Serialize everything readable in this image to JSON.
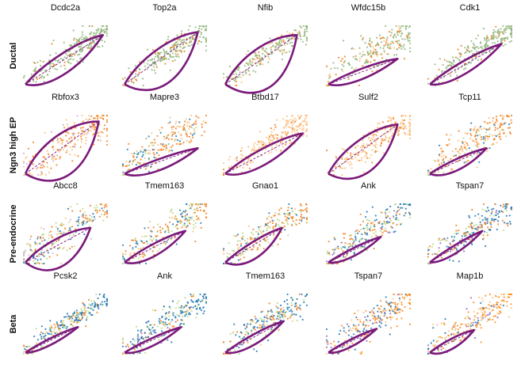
{
  "chart_data": {
    "type": "scatter",
    "description_of_marks": {
      "points": "cells, coloured by cluster",
      "loop": "fitted phase portrait (purple solid curve)",
      "diagonal": "steady-state ratio (purple dashed line)"
    },
    "colors": {
      "ductal": "#8fb57b",
      "ngn3_low": "#c5b0d5",
      "ngn3_high": "#f0801e",
      "ngn3_high_light": "#fcbf80",
      "pre_endocrine": "#b9d98a",
      "alpha": "#1f77b4",
      "beta": "#ff8c1a",
      "delta": "#9467bd",
      "epsilon": "#d9c5a0",
      "fit_curve": "#7b1a7b"
    },
    "rows": [
      {
        "label": "Ductal",
        "panels": [
          {
            "gene": "Dcdc2a",
            "palette": [
              "ductal",
              "ngn3_high"
            ],
            "weights": [
              0.85,
              0.15
            ],
            "spread": 0.1,
            "loop": {
              "up_bulge": 0.18,
              "down_bulge": 0.1,
              "end_x": 0.95,
              "end_y": 0.85
            }
          },
          {
            "gene": "Top2a",
            "palette": [
              "ductal",
              "ngn3_high"
            ],
            "weights": [
              0.8,
              0.2
            ],
            "spread": 0.1,
            "loop": {
              "up_bulge": 0.35,
              "down_bulge": 0.15,
              "end_x": 0.9,
              "end_y": 0.9
            }
          },
          {
            "gene": "Nfib",
            "palette": [
              "ductal",
              "ngn3_high_light",
              "ngn3_high"
            ],
            "weights": [
              0.7,
              0.2,
              0.1
            ],
            "spread": 0.09,
            "loop": {
              "up_bulge": 0.4,
              "down_bulge": 0.18,
              "end_x": 0.88,
              "end_y": 0.85
            }
          },
          {
            "gene": "Wfdc15b",
            "palette": [
              "ductal",
              "ngn3_high",
              "ngn3_high_light"
            ],
            "weights": [
              0.6,
              0.25,
              0.15
            ],
            "spread": 0.13,
            "loop": {
              "up_bulge": 0.1,
              "down_bulge": 0.05,
              "end_x": 0.85,
              "end_y": 0.45
            }
          },
          {
            "gene": "Cdk1",
            "palette": [
              "ductal",
              "ngn3_high"
            ],
            "weights": [
              0.85,
              0.15
            ],
            "spread": 0.1,
            "loop": {
              "up_bulge": 0.12,
              "down_bulge": 0.06,
              "end_x": 0.88,
              "end_y": 0.7
            }
          }
        ]
      },
      {
        "label": "Ngn3 high EP",
        "panels": [
          {
            "gene": "Rbfox3",
            "palette": [
              "ngn3_high",
              "ngn3_high_light",
              "ngn3_low"
            ],
            "weights": [
              0.55,
              0.35,
              0.1
            ],
            "spread": 0.14,
            "loop": {
              "up_bulge": 0.38,
              "down_bulge": 0.2,
              "end_x": 0.9,
              "end_y": 0.9
            }
          },
          {
            "gene": "Mapre3",
            "palette": [
              "ngn3_high_light",
              "ngn3_high",
              "alpha",
              "pre_endocrine",
              "ductal"
            ],
            "weights": [
              0.3,
              0.3,
              0.2,
              0.1,
              0.1
            ],
            "spread": 0.14,
            "loop": {
              "up_bulge": 0.12,
              "down_bulge": 0.04,
              "end_x": 0.9,
              "end_y": 0.45
            }
          },
          {
            "gene": "Btbd17",
            "palette": [
              "ngn3_high_light",
              "ngn3_high"
            ],
            "weights": [
              0.75,
              0.25
            ],
            "spread": 0.11,
            "loop": {
              "up_bulge": 0.15,
              "down_bulge": 0.08,
              "end_x": 0.95,
              "end_y": 0.7
            }
          },
          {
            "gene": "Sulf2",
            "palette": [
              "ngn3_high_light",
              "ngn3_high"
            ],
            "weights": [
              0.75,
              0.25
            ],
            "spread": 0.12,
            "loop": {
              "up_bulge": 0.32,
              "down_bulge": 0.15,
              "end_x": 0.85,
              "end_y": 0.85
            }
          },
          {
            "gene": "Tcp11",
            "palette": [
              "ngn3_high",
              "ngn3_high_light",
              "alpha",
              "pre_endocrine"
            ],
            "weights": [
              0.45,
              0.3,
              0.15,
              0.1
            ],
            "spread": 0.14,
            "loop": {
              "up_bulge": 0.12,
              "down_bulge": 0.04,
              "end_x": 0.7,
              "end_y": 0.45
            }
          }
        ]
      },
      {
        "label": "Pre-endocrine",
        "panels": [
          {
            "gene": "Abcc8",
            "palette": [
              "ngn3_high",
              "pre_endocrine",
              "alpha",
              "ngn3_high_light",
              "ngn3_low"
            ],
            "weights": [
              0.35,
              0.25,
              0.2,
              0.1,
              0.1
            ],
            "spread": 0.13,
            "loop": {
              "up_bulge": 0.3,
              "down_bulge": 0.1,
              "end_x": 0.8,
              "end_y": 0.6
            }
          },
          {
            "gene": "Tmem163",
            "palette": [
              "ngn3_high",
              "pre_endocrine",
              "alpha",
              "ngn3_high_light"
            ],
            "weights": [
              0.35,
              0.3,
              0.2,
              0.15
            ],
            "spread": 0.12,
            "loop": {
              "up_bulge": 0.12,
              "down_bulge": 0.05,
              "end_x": 0.75,
              "end_y": 0.55
            }
          },
          {
            "gene": "Gnao1",
            "palette": [
              "ngn3_high",
              "pre_endocrine",
              "alpha",
              "ngn3_high_light"
            ],
            "weights": [
              0.4,
              0.3,
              0.15,
              0.15
            ],
            "spread": 0.12,
            "loop": {
              "up_bulge": 0.18,
              "down_bulge": 0.05,
              "end_x": 0.7,
              "end_y": 0.6
            }
          },
          {
            "gene": "Ank",
            "palette": [
              "alpha",
              "pre_endocrine",
              "ngn3_high",
              "delta"
            ],
            "weights": [
              0.45,
              0.25,
              0.2,
              0.1
            ],
            "spread": 0.12,
            "loop": {
              "up_bulge": 0.08,
              "down_bulge": 0.03,
              "end_x": 0.65,
              "end_y": 0.45
            }
          },
          {
            "gene": "Tspan7",
            "palette": [
              "alpha",
              "ngn3_high",
              "pre_endocrine",
              "delta"
            ],
            "weights": [
              0.45,
              0.3,
              0.15,
              0.1
            ],
            "spread": 0.12,
            "loop": {
              "up_bulge": 0.08,
              "down_bulge": 0.03,
              "end_x": 0.65,
              "end_y": 0.55
            }
          }
        ]
      },
      {
        "label": "Beta",
        "panels": [
          {
            "gene": "Pcsk2",
            "palette": [
              "alpha",
              "pre_endocrine",
              "ngn3_high",
              "ngn3_high_light"
            ],
            "weights": [
              0.5,
              0.25,
              0.15,
              0.1
            ],
            "spread": 0.07,
            "loop": {
              "up_bulge": 0.06,
              "down_bulge": 0.03,
              "end_x": 0.65,
              "end_y": 0.45
            }
          },
          {
            "gene": "Ank",
            "palette": [
              "alpha",
              "pre_endocrine",
              "ngn3_high",
              "delta"
            ],
            "weights": [
              0.5,
              0.25,
              0.15,
              0.1
            ],
            "spread": 0.11,
            "loop": {
              "up_bulge": 0.08,
              "down_bulge": 0.03,
              "end_x": 0.7,
              "end_y": 0.45
            }
          },
          {
            "gene": "Tmem163",
            "palette": [
              "alpha",
              "ngn3_high",
              "pre_endocrine",
              "ngn3_high_light"
            ],
            "weights": [
              0.4,
              0.3,
              0.2,
              0.1
            ],
            "spread": 0.12,
            "loop": {
              "up_bulge": 0.1,
              "down_bulge": 0.04,
              "end_x": 0.72,
              "end_y": 0.55
            }
          },
          {
            "gene": "Tspan7",
            "palette": [
              "beta",
              "alpha",
              "ngn3_high_light",
              "delta"
            ],
            "weights": [
              0.45,
              0.3,
              0.15,
              0.1
            ],
            "spread": 0.13,
            "loop": {
              "up_bulge": 0.07,
              "down_bulge": 0.03,
              "end_x": 0.6,
              "end_y": 0.42
            }
          },
          {
            "gene": "Map1b",
            "palette": [
              "beta",
              "ngn3_high_light",
              "alpha",
              "delta",
              "pre_endocrine"
            ],
            "weights": [
              0.45,
              0.25,
              0.1,
              0.1,
              0.1
            ],
            "spread": 0.12,
            "loop": {
              "up_bulge": 0.1,
              "down_bulge": 0.04,
              "end_x": 0.55,
              "end_y": 0.4
            }
          }
        ]
      }
    ]
  }
}
